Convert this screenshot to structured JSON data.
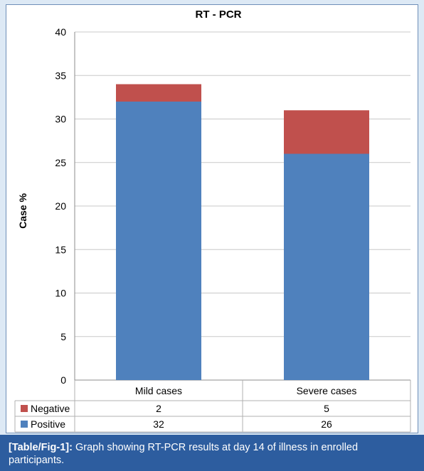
{
  "chart_data": {
    "type": "bar",
    "stacked": true,
    "title": "RT - PCR",
    "ylabel": "Case %",
    "xlabel": "",
    "ylim": [
      0,
      40
    ],
    "yticks": [
      0,
      5,
      10,
      15,
      20,
      25,
      30,
      35,
      40
    ],
    "grid": true,
    "categories": [
      "Mild cases",
      "Severe cases"
    ],
    "series": [
      {
        "name": "Positive",
        "values": [
          32,
          26
        ],
        "color": "#4f81bd"
      },
      {
        "name": "Negative",
        "values": [
          2,
          5
        ],
        "color": "#c0504d"
      }
    ],
    "legend": "data-table-left",
    "data_table": true
  },
  "caption": {
    "label": "[Table/Fig-1]:",
    "text": "Graph showing RT-PCR results at day 14 of illness in enrolled participants."
  }
}
